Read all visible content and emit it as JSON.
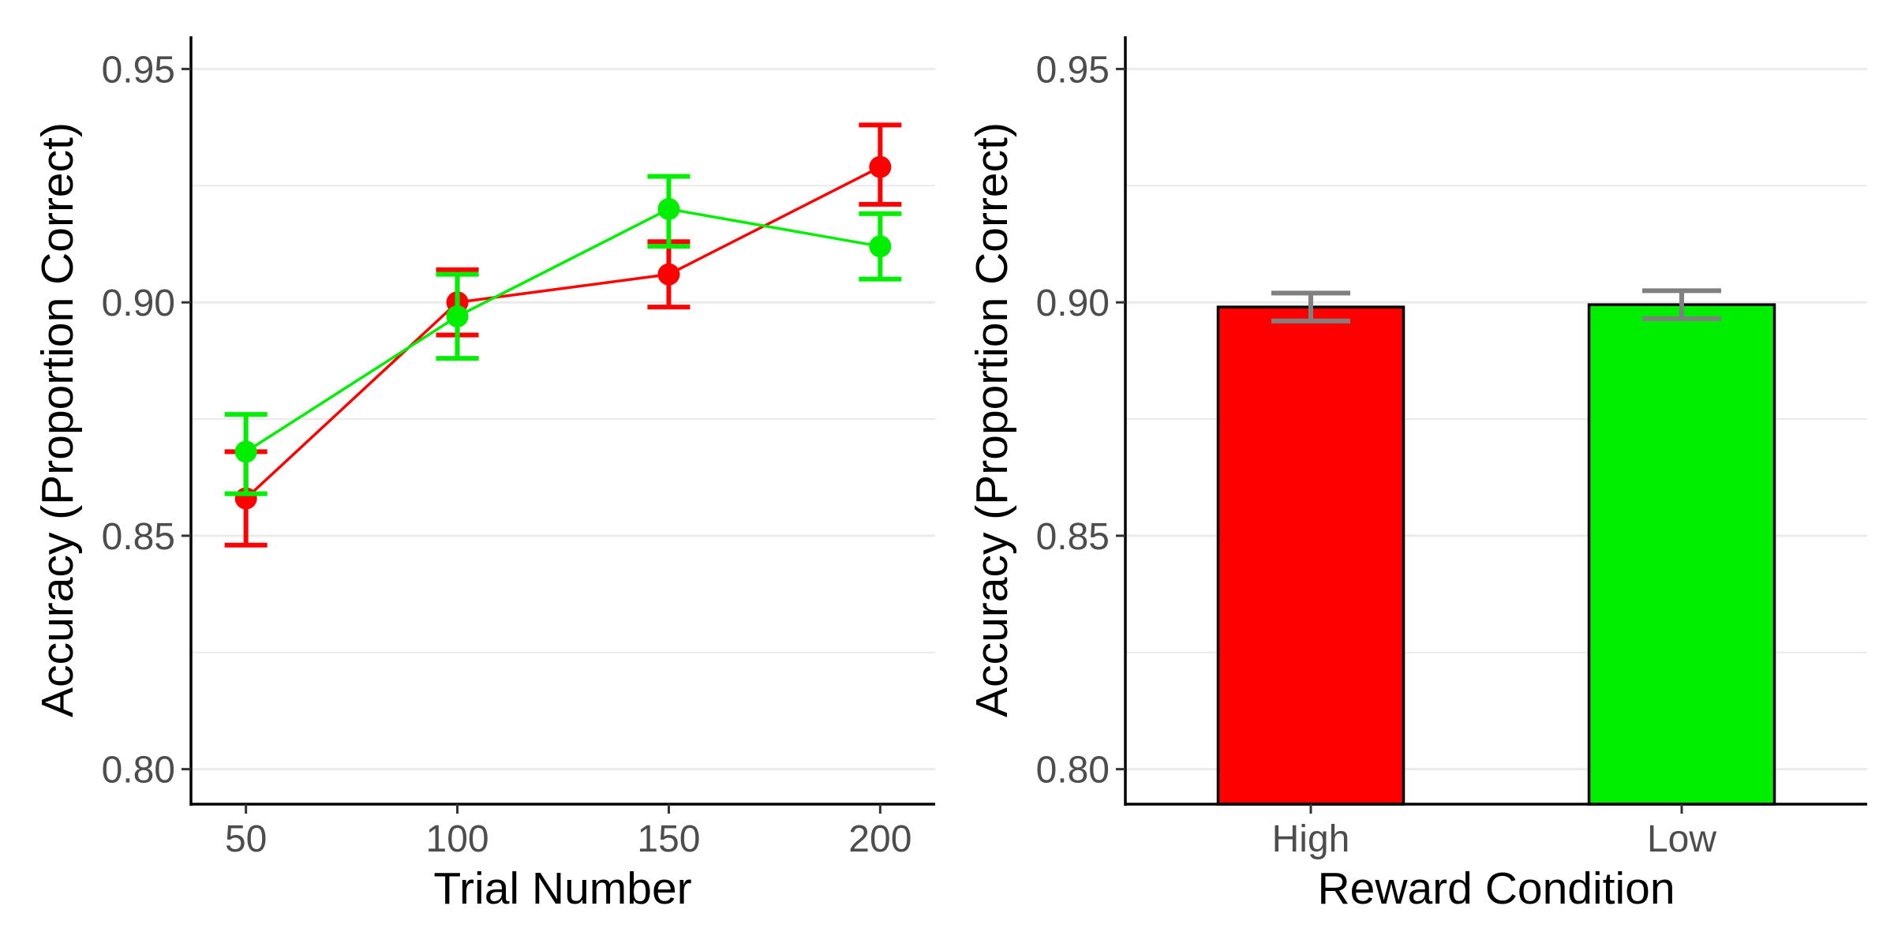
{
  "chart_data": [
    {
      "type": "line",
      "xlabel": "Trial Number",
      "ylabel": "Accuracy (Proportion Correct)",
      "x": [
        50,
        100,
        150,
        200
      ],
      "x_ticks": [
        "50",
        "100",
        "150",
        "200"
      ],
      "xlim": [
        37,
        213
      ],
      "ylim": [
        0.7925,
        0.957
      ],
      "y_ticks": [
        "0.80",
        "0.85",
        "0.90",
        "0.95"
      ],
      "y_tick_values": [
        0.8,
        0.85,
        0.9,
        0.95
      ],
      "grid": "horizontal",
      "series": [
        {
          "color": "#ff0000",
          "values": [
            0.858,
            0.9,
            0.906,
            0.929
          ],
          "err_low": [
            0.848,
            0.893,
            0.899,
            0.921
          ],
          "err_high": [
            0.868,
            0.907,
            0.913,
            0.938
          ]
        },
        {
          "color": "#00ee00",
          "values": [
            0.868,
            0.897,
            0.92,
            0.912
          ],
          "err_low": [
            0.859,
            0.888,
            0.912,
            0.905
          ],
          "err_high": [
            0.876,
            0.906,
            0.927,
            0.919
          ]
        }
      ]
    },
    {
      "type": "bar",
      "xlabel": "Reward Condition",
      "ylabel": "Accuracy (Proportion Correct)",
      "categories": [
        "High",
        "Low"
      ],
      "values": [
        0.899,
        0.8995
      ],
      "err_low": [
        0.896,
        0.8965
      ],
      "err_high": [
        0.902,
        0.9025
      ],
      "colors": [
        "#ff0000",
        "#00ee00"
      ],
      "errorbar_color": "#808080",
      "ylim": [
        0.7925,
        0.957
      ],
      "y_ticks": [
        "0.80",
        "0.85",
        "0.90",
        "0.95"
      ],
      "y_tick_values": [
        0.8,
        0.85,
        0.9,
        0.95
      ],
      "grid": "horizontal"
    }
  ]
}
